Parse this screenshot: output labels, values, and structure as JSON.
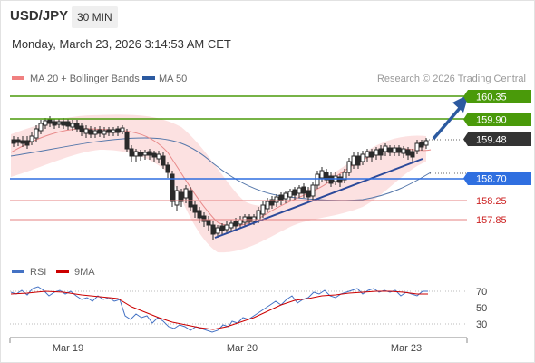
{
  "header": {
    "symbol": "USD/JPY",
    "timeframe": "30 MIN",
    "timestamp": "Monday, March 23, 2026 3:14:53 AM CET"
  },
  "legend": {
    "ma20_label": "MA 20 + Bollinger Bands",
    "ma50_label": "MA 50",
    "ma20_color": "#f08080",
    "ma50_color": "#2c5aa0",
    "credit": "Research © 2026 Trading Central"
  },
  "levels": {
    "r2": "160.35",
    "r1": "159.90",
    "last": "159.48",
    "pivot": "158.70",
    "s1": "158.25",
    "s2": "157.85",
    "green": "#4a9a0a",
    "blue": "#2f6fe0",
    "red": "#e58080",
    "dark": "#333333"
  },
  "rsi": {
    "rsi_label": "RSI",
    "ma_label": "9MA",
    "rsi_color": "#4472c4",
    "ma_color": "#cc0000",
    "ticks": [
      "70",
      "50",
      "30"
    ]
  },
  "x_axis": {
    "labels": [
      "Mar 19",
      "Mar 20",
      "Mar 23"
    ]
  },
  "chart_data": {
    "type": "line",
    "series": [
      {
        "name": "MA 20 + Bollinger Bands",
        "values": [
          159.2,
          159.3,
          159.4,
          159.45,
          159.4,
          159.1,
          158.9,
          158.4,
          158.0,
          157.7,
          157.7,
          157.9,
          158.1,
          158.3,
          158.5,
          158.7,
          158.9,
          159.1,
          159.3,
          159.35
        ]
      },
      {
        "name": "MA 50",
        "values": [
          159.0,
          159.1,
          159.2,
          159.3,
          159.35,
          159.35,
          159.3,
          159.2,
          158.9,
          158.6,
          158.35,
          158.2,
          158.15,
          158.2,
          158.25,
          158.3,
          158.4,
          158.5,
          158.6,
          158.8
        ]
      },
      {
        "name": "RSI",
        "values": [
          68,
          70,
          72,
          68,
          70,
          65,
          60,
          45,
          35,
          28,
          25,
          30,
          45,
          60,
          68,
          70,
          72,
          70,
          68,
          72
        ]
      },
      {
        "name": "9MA",
        "values": [
          65,
          67,
          69,
          69,
          68,
          66,
          62,
          52,
          40,
          32,
          28,
          30,
          40,
          55,
          64,
          68,
          70,
          70,
          69,
          70
        ]
      }
    ],
    "xlabel": "",
    "ylabel": ""
  }
}
